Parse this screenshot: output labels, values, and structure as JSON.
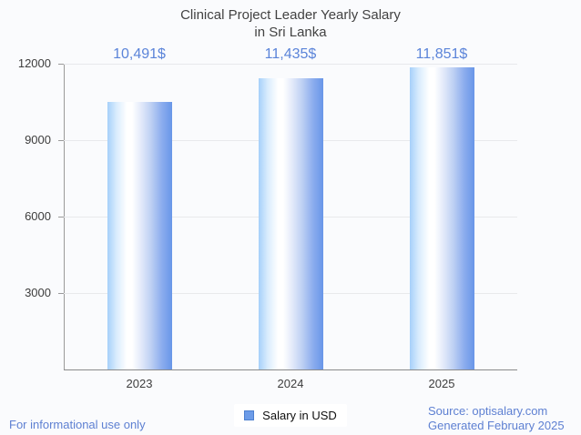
{
  "title": {
    "line1": "Clinical Project Leader Yearly Salary",
    "line2": "in Sri Lanka"
  },
  "chart_data": {
    "type": "bar",
    "title": "Clinical Project Leader Yearly Salary in Sri Lanka",
    "categories": [
      "2023",
      "2024",
      "2025"
    ],
    "series": [
      {
        "name": "Salary in USD",
        "values": [
          10491,
          11435,
          11851
        ],
        "value_labels": [
          "10,491$",
          "11,435$",
          "11,851$"
        ]
      }
    ],
    "xlabel": "",
    "ylabel": "",
    "ylim": [
      0,
      12000
    ],
    "yticks": [
      {
        "value": 3000,
        "label": "3000"
      },
      {
        "value": 6000,
        "label": "6000"
      },
      {
        "value": 9000,
        "label": "9000"
      },
      {
        "value": 12000,
        "label": "12000"
      }
    ],
    "grid": "horizontal",
    "legend_position": "bottom-center"
  },
  "legend": {
    "items": [
      {
        "label": "Salary in USD",
        "color": "#6d9ce8"
      }
    ]
  },
  "footer": {
    "disclaimer": "For informational use only",
    "source": "Source: optisalary.com",
    "generated": "Generated February 2025"
  },
  "colors": {
    "background": "#fafbfd",
    "title_text": "#424242",
    "axis_text": "#3d3d3d",
    "value_text": "#5b84d9",
    "footer_text": "#5e80d2",
    "gridline": "#e8e9ec",
    "axis_line": "#9a9a9a",
    "bar_gradient_left": "#a6d0fa",
    "bar_gradient_mid": "#ffffff",
    "bar_gradient_right": "#6896e8",
    "legend_swatch": "#6d9ce8"
  }
}
